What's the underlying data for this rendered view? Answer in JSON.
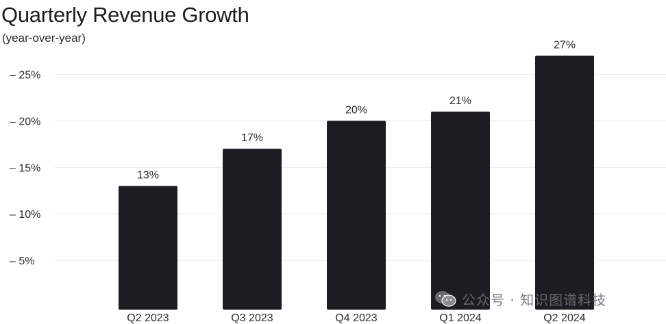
{
  "chart_data": {
    "type": "bar",
    "title": "Quarterly Revenue Growth",
    "subtitle": "(year-over-year)",
    "categories": [
      "Q2 2023",
      "Q3 2023",
      "Q4 2023",
      "Q1 2024",
      "Q2 2024"
    ],
    "values": [
      13,
      17,
      20,
      21,
      27
    ],
    "data_labels": [
      "13%",
      "17%",
      "20%",
      "21%",
      "27%"
    ],
    "y_ticks": [
      5,
      10,
      15,
      20,
      25
    ],
    "y_tick_labels": [
      "5%",
      "10%",
      "15%",
      "20%",
      "25%"
    ],
    "ylim": [
      0,
      28
    ],
    "xlabel": "",
    "ylabel": "",
    "grid": true,
    "legend": "none",
    "bar_color": "#1c1d20",
    "grid_color": "#e9e9ec"
  },
  "watermark": {
    "text": "公众号 · 知识图谱科技",
    "icon": "wechat-icon"
  }
}
